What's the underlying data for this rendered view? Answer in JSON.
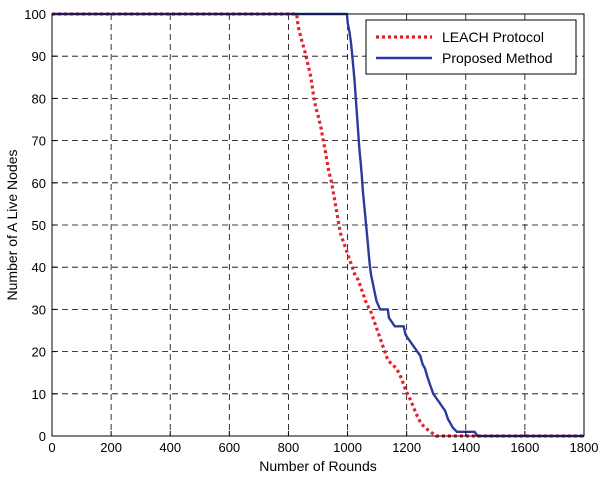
{
  "chart_data": {
    "type": "line",
    "title": "",
    "xlabel": "Number of Rounds",
    "ylabel": "Number of A Live Nodes",
    "xlim": [
      0,
      1800
    ],
    "ylim": [
      0,
      100
    ],
    "x_ticks": [
      0,
      200,
      400,
      600,
      800,
      1000,
      1200,
      1400,
      1600,
      1800
    ],
    "y_ticks": [
      0,
      10,
      20,
      30,
      40,
      50,
      60,
      70,
      80,
      90,
      100
    ],
    "grid": true,
    "legend_position": "top-right",
    "series": [
      {
        "name": "LEACH Protocol",
        "color": "#e8202a",
        "line_style": "dotted",
        "points": [
          [
            0,
            100
          ],
          [
            828,
            100
          ],
          [
            833,
            97
          ],
          [
            840,
            95
          ],
          [
            848,
            93
          ],
          [
            856,
            91
          ],
          [
            866,
            88
          ],
          [
            876,
            85
          ],
          [
            884,
            81
          ],
          [
            892,
            78
          ],
          [
            900,
            76
          ],
          [
            910,
            73
          ],
          [
            918,
            70
          ],
          [
            926,
            67
          ],
          [
            936,
            63
          ],
          [
            946,
            60
          ],
          [
            956,
            56
          ],
          [
            966,
            52
          ],
          [
            976,
            48
          ],
          [
            986,
            46
          ],
          [
            996,
            44
          ],
          [
            1006,
            42
          ],
          [
            1016,
            40
          ],
          [
            1026,
            38
          ],
          [
            1036,
            37
          ],
          [
            1046,
            35
          ],
          [
            1056,
            33
          ],
          [
            1066,
            31
          ],
          [
            1076,
            30
          ],
          [
            1086,
            28
          ],
          [
            1096,
            26
          ],
          [
            1106,
            24
          ],
          [
            1116,
            22
          ],
          [
            1126,
            20
          ],
          [
            1136,
            18
          ],
          [
            1150,
            17
          ],
          [
            1166,
            16
          ],
          [
            1180,
            14
          ],
          [
            1196,
            11
          ],
          [
            1210,
            9
          ],
          [
            1222,
            7
          ],
          [
            1234,
            5
          ],
          [
            1248,
            3
          ],
          [
            1262,
            2
          ],
          [
            1280,
            1
          ],
          [
            1300,
            0
          ],
          [
            1800,
            0
          ]
        ]
      },
      {
        "name": "Proposed Method",
        "color": "#2a3b9c",
        "line_style": "solid",
        "points": [
          [
            0,
            100
          ],
          [
            998,
            100
          ],
          [
            1000,
            98
          ],
          [
            1006,
            96
          ],
          [
            1012,
            93
          ],
          [
            1016,
            90
          ],
          [
            1020,
            87
          ],
          [
            1024,
            84
          ],
          [
            1028,
            80
          ],
          [
            1032,
            76
          ],
          [
            1036,
            72
          ],
          [
            1040,
            68
          ],
          [
            1044,
            65
          ],
          [
            1048,
            62
          ],
          [
            1052,
            58
          ],
          [
            1056,
            55
          ],
          [
            1060,
            52
          ],
          [
            1064,
            49
          ],
          [
            1068,
            46
          ],
          [
            1072,
            43
          ],
          [
            1076,
            40
          ],
          [
            1080,
            38
          ],
          [
            1086,
            36
          ],
          [
            1092,
            34
          ],
          [
            1098,
            32
          ],
          [
            1104,
            31
          ],
          [
            1110,
            30
          ],
          [
            1136,
            30
          ],
          [
            1140,
            28
          ],
          [
            1150,
            27
          ],
          [
            1160,
            26
          ],
          [
            1190,
            26
          ],
          [
            1196,
            24
          ],
          [
            1206,
            23
          ],
          [
            1216,
            22
          ],
          [
            1226,
            21
          ],
          [
            1236,
            20
          ],
          [
            1246,
            19
          ],
          [
            1254,
            17
          ],
          [
            1262,
            16
          ],
          [
            1270,
            14
          ],
          [
            1280,
            12
          ],
          [
            1290,
            10
          ],
          [
            1300,
            9
          ],
          [
            1310,
            8
          ],
          [
            1320,
            7
          ],
          [
            1330,
            6
          ],
          [
            1340,
            4
          ],
          [
            1348,
            3
          ],
          [
            1356,
            2
          ],
          [
            1370,
            1
          ],
          [
            1430,
            1
          ],
          [
            1440,
            0
          ],
          [
            1800,
            0
          ]
        ]
      }
    ]
  }
}
